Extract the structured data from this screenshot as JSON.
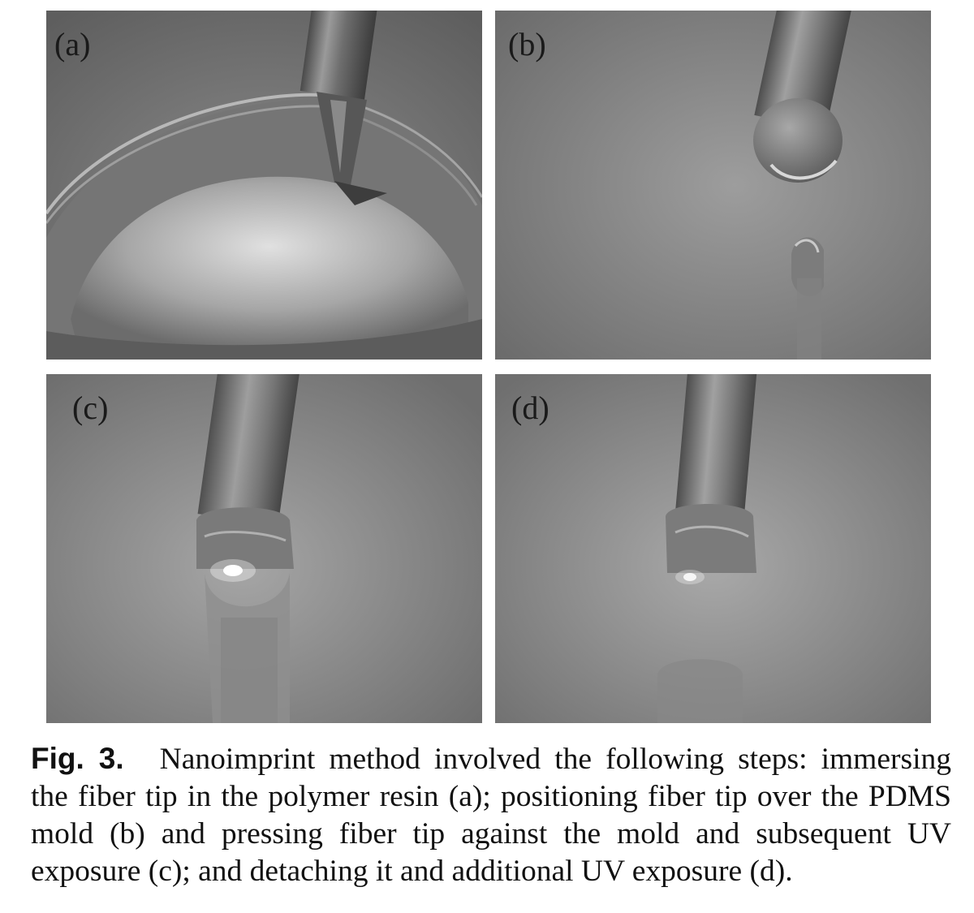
{
  "figure": {
    "panels": [
      {
        "label": "(a)"
      },
      {
        "label": "(b)"
      },
      {
        "label": "(c)"
      },
      {
        "label": "(d)"
      }
    ],
    "caption": {
      "label": "Fig. 3.",
      "text": "Nanoimprint method involved the following steps: immersing the fiber tip in the polymer resin (a); positioning fiber tip over the PDMS mold (b) and pressing fiber tip against the mold and subsequent UV exposure (c); and detaching it and additional UV exposure (d)."
    }
  }
}
